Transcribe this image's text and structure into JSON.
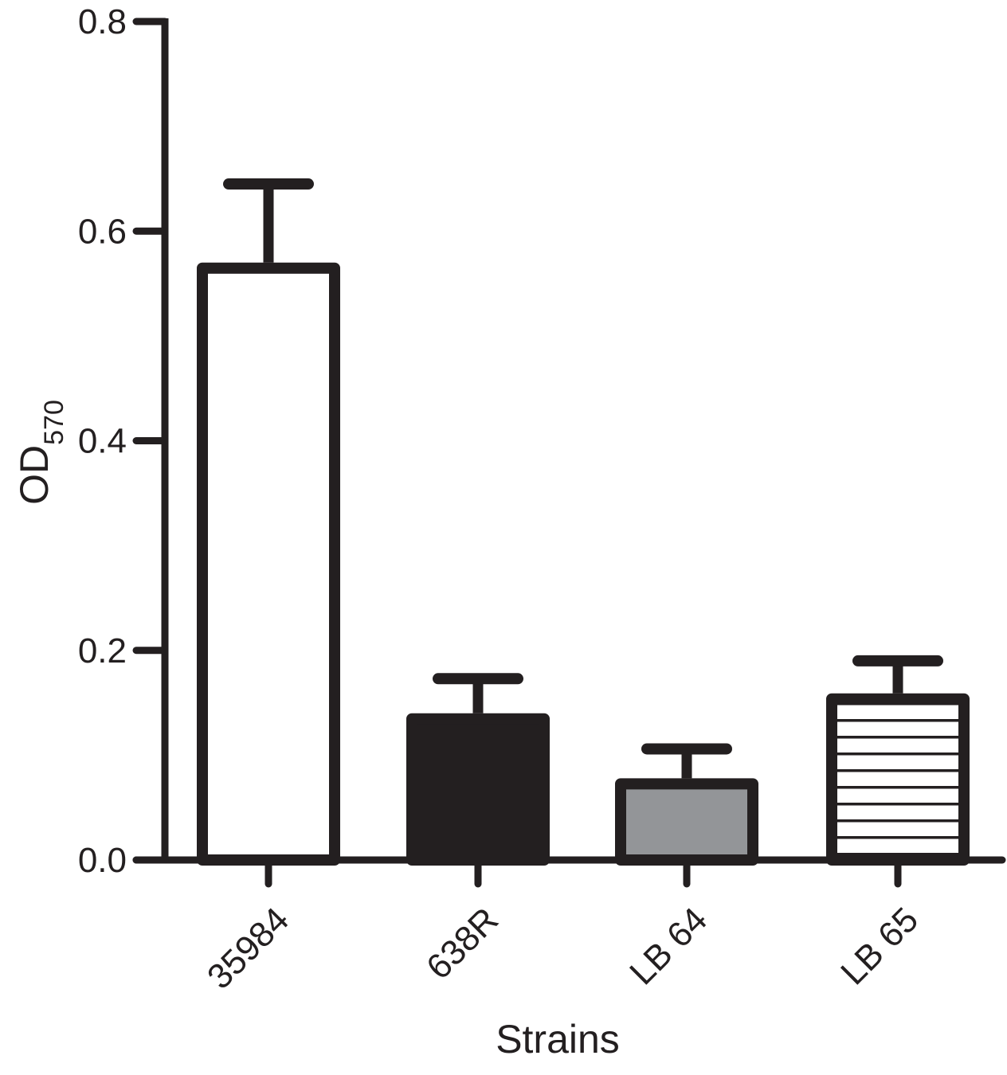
{
  "chart_data": {
    "type": "bar",
    "title": "",
    "xlabel": "Strains",
    "ylabel": "OD",
    "ylabel_subscript": "570",
    "categories": [
      "35984",
      "638R",
      "LB 64",
      "LB 65"
    ],
    "values": [
      0.57,
      0.14,
      0.078,
      0.159
    ],
    "error_upper": [
      0.645,
      0.173,
      0.106,
      0.19
    ],
    "fills": [
      "white",
      "black",
      "gray",
      "horizontal-stripes"
    ],
    "ylim": [
      0,
      0.8
    ],
    "yticks": [
      "0.0",
      "0.2",
      "0.4",
      "0.6",
      "0.8"
    ],
    "grid": false,
    "colors": {
      "ink": "#231f20",
      "gray": "#939598",
      "white": "#ffffff"
    }
  }
}
